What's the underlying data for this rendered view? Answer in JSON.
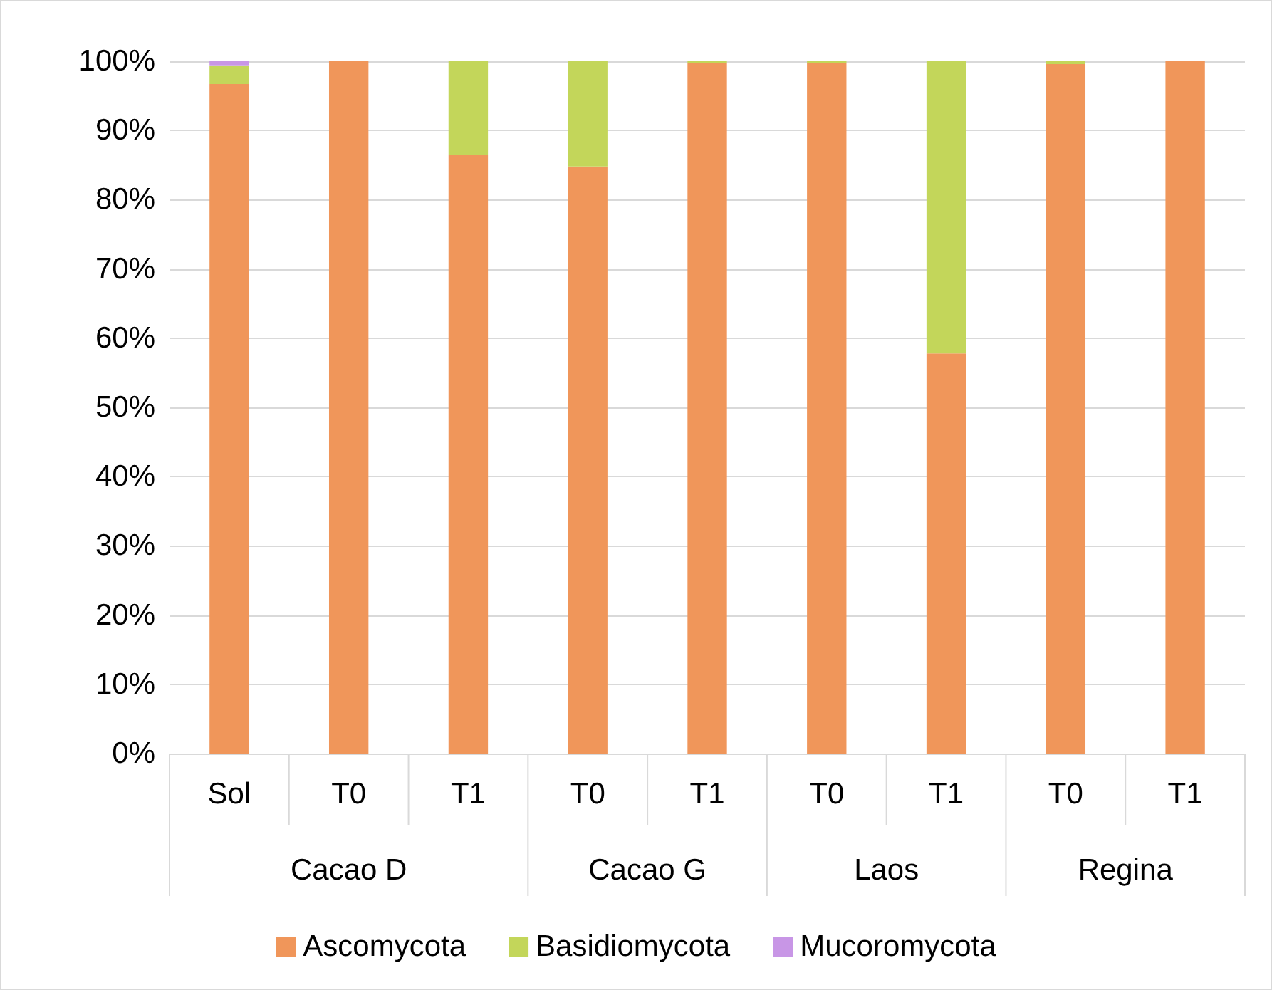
{
  "chart_data": {
    "type": "bar",
    "stacked": true,
    "categories": [
      "Sol",
      "T0",
      "T1",
      "T0",
      "T1",
      "T0",
      "T1",
      "T0",
      "T1"
    ],
    "series": [
      {
        "name": "Ascomycota",
        "color": "#f0965a",
        "values": [
          96.7,
          100,
          86.5,
          84.8,
          99.8,
          99.8,
          57.8,
          99.6,
          100
        ]
      },
      {
        "name": "Basidiomycota",
        "color": "#c3d65a",
        "values": [
          2.7,
          0,
          13.5,
          15.2,
          0.2,
          0.2,
          42.2,
          0.4,
          0
        ]
      },
      {
        "name": "Mucoromycota",
        "color": "#c896e6",
        "values": [
          0.6,
          0,
          0,
          0,
          0,
          0,
          0,
          0,
          0
        ]
      }
    ],
    "annotations": [
      "Cacao D",
      "Cacao G",
      "Laos",
      "Regina"
    ],
    "ylim": [
      0,
      100
    ],
    "yticks": [
      {
        "value": 0,
        "label": "0%"
      },
      {
        "value": 10,
        "label": "10%"
      },
      {
        "value": 20,
        "label": "20%"
      },
      {
        "value": 30,
        "label": "30%"
      },
      {
        "value": 40,
        "label": "40%"
      },
      {
        "value": 50,
        "label": "50%"
      },
      {
        "value": 60,
        "label": "60%"
      },
      {
        "value": 70,
        "label": "70%"
      },
      {
        "value": 80,
        "label": "80%"
      },
      {
        "value": 90,
        "label": "90%"
      },
      {
        "value": 100,
        "label": "100%"
      }
    ],
    "grid": "y",
    "legend": "bottom"
  }
}
